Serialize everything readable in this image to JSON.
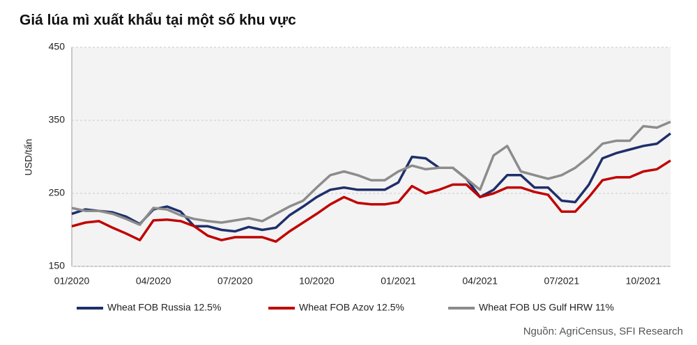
{
  "chart_data": {
    "type": "line",
    "title": "Giá lúa mì xuất khẩu tại một số khu vực",
    "y_label": "USD/tấn",
    "source": "Nguồn: AgriCensus, SFI Research",
    "categories": [
      "01/2020",
      null,
      null,
      null,
      null,
      null,
      "04/2020",
      null,
      null,
      null,
      null,
      null,
      "07/2020",
      null,
      null,
      null,
      null,
      null,
      "10/2020",
      null,
      null,
      null,
      null,
      null,
      "01/2021",
      null,
      null,
      null,
      null,
      null,
      "04/2021",
      null,
      null,
      null,
      null,
      null,
      "07/2021",
      null,
      null,
      null,
      null,
      null,
      "10/2021",
      null,
      null
    ],
    "series": [
      {
        "name": "Wheat FOB Russia 12.5%",
        "color": "#1f2f6b",
        "values": [
          222,
          228,
          226,
          224,
          218,
          208,
          228,
          232,
          225,
          205,
          205,
          200,
          198,
          204,
          200,
          203,
          220,
          232,
          245,
          255,
          258,
          255,
          255,
          255,
          265,
          300,
          298,
          285,
          285,
          270,
          245,
          255,
          275,
          275,
          258,
          258,
          240,
          238,
          262,
          298,
          305,
          310,
          315,
          318,
          332
        ]
      },
      {
        "name": "Wheat FOB Azov 12.5%",
        "color": "#c00000",
        "values": [
          205,
          210,
          212,
          203,
          195,
          186,
          213,
          214,
          212,
          205,
          192,
          186,
          190,
          190,
          190,
          184,
          198,
          210,
          222,
          235,
          245,
          237,
          235,
          235,
          238,
          260,
          250,
          255,
          262,
          262,
          245,
          250,
          258,
          258,
          252,
          248,
          225,
          225,
          245,
          268,
          272,
          272,
          280,
          283,
          295
        ]
      },
      {
        "name": "Wheat FOB US Gulf HRW 11%",
        "color": "#8c8c8c",
        "values": [
          230,
          226,
          226,
          222,
          215,
          207,
          230,
          228,
          220,
          215,
          212,
          210,
          213,
          216,
          212,
          222,
          232,
          240,
          258,
          275,
          280,
          275,
          268,
          268,
          280,
          288,
          283,
          285,
          285,
          270,
          255,
          302,
          315,
          280,
          275,
          270,
          275,
          285,
          300,
          318,
          322,
          322,
          342,
          340,
          348
        ]
      }
    ],
    "ylim": [
      150,
      450
    ],
    "yticks": [
      150,
      250,
      350,
      450
    ],
    "grid": true,
    "legend": "bottom"
  }
}
